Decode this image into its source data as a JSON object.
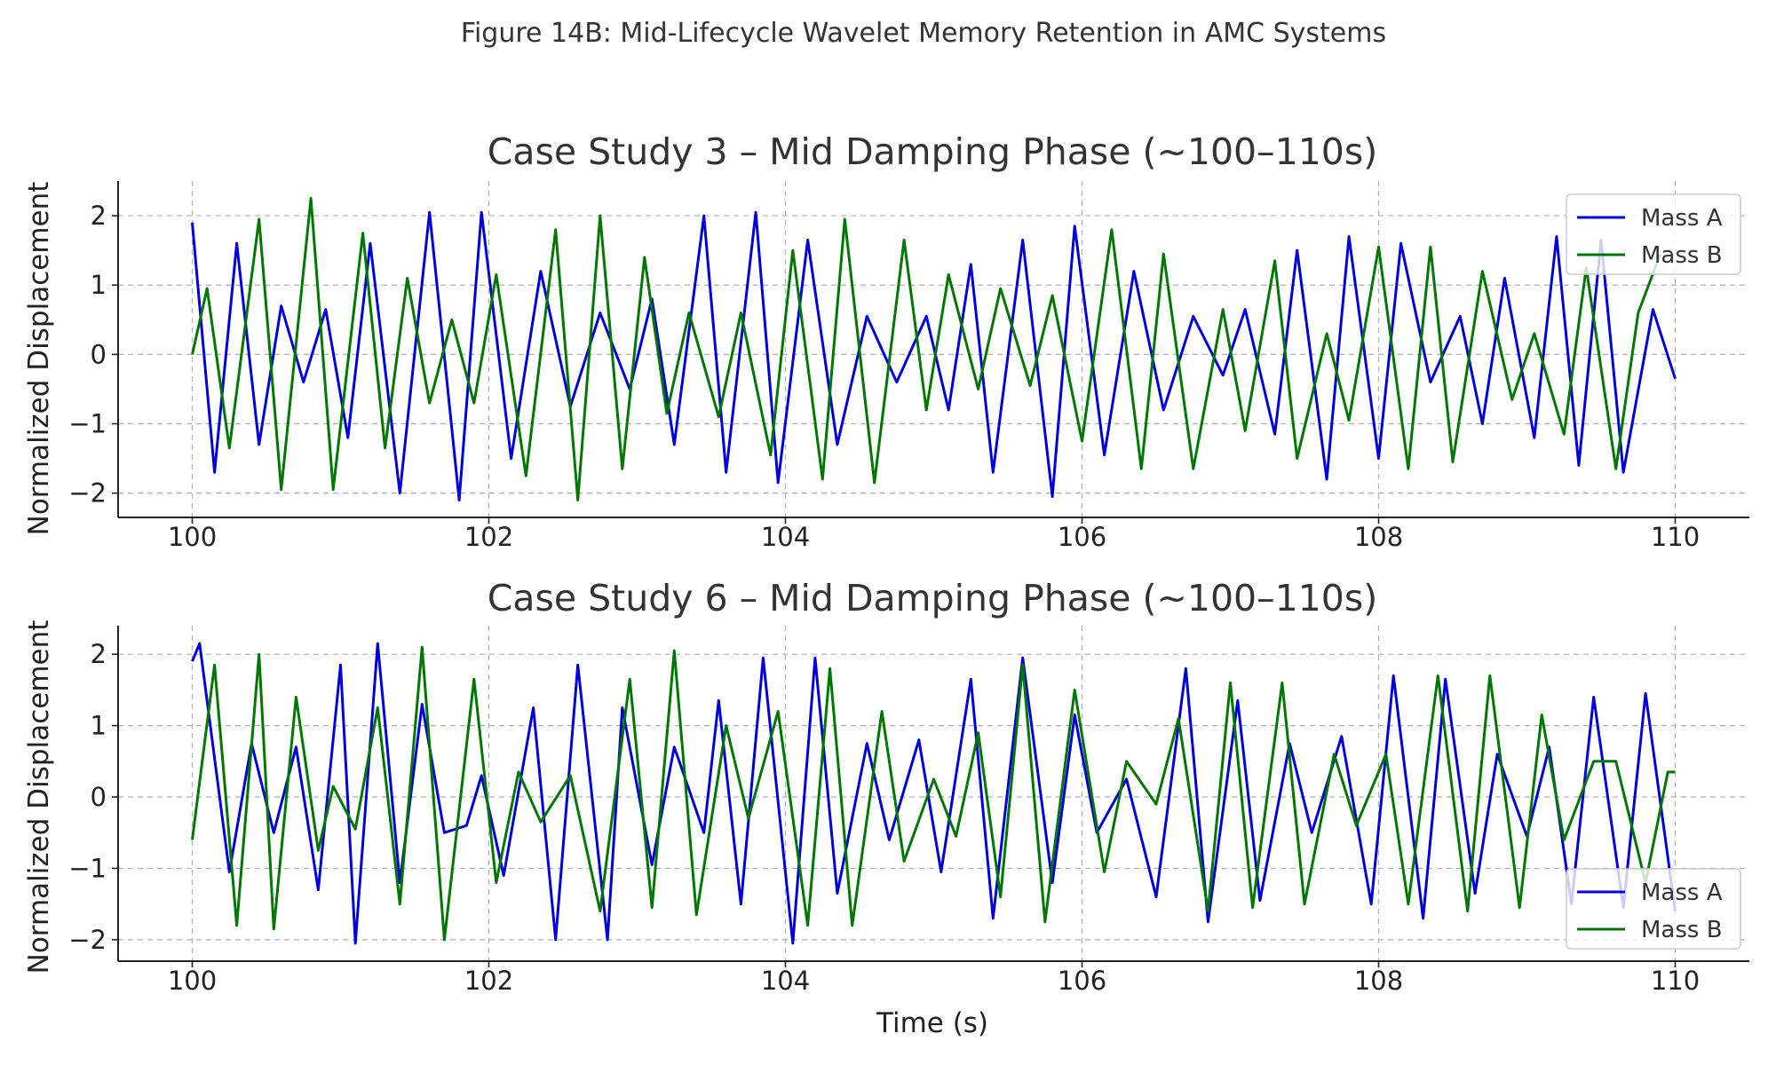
{
  "figure": {
    "suptitle": "Figure 14B: Mid-Lifecycle Wavelet Memory Retention in AMC Systems"
  },
  "chart_data": [
    {
      "type": "line",
      "title": "Case Study 3 – Mid Damping Phase (~100–110s)",
      "xlabel": "",
      "ylabel": "Normalized Displacement",
      "xlim": [
        99.5,
        110.5
      ],
      "ylim": [
        -2.35,
        2.5
      ],
      "xticks": [
        100,
        102,
        104,
        106,
        108,
        110
      ],
      "yticks": [
        -2,
        -1,
        0,
        1,
        2
      ],
      "ytick_labels": [
        "−2",
        "−1",
        "0",
        "1",
        "2"
      ],
      "grid": true,
      "legend": "top-right",
      "series": [
        {
          "name": "Mass A",
          "color": "#0000dd",
          "x": [
            100.0,
            100.15,
            100.3,
            100.45,
            100.6,
            100.75,
            100.9,
            101.05,
            101.2,
            101.4,
            101.6,
            101.8,
            101.95,
            102.15,
            102.35,
            102.55,
            102.75,
            102.95,
            103.1,
            103.25,
            103.45,
            103.6,
            103.8,
            103.95,
            104.15,
            104.35,
            104.55,
            104.75,
            104.95,
            105.1,
            105.25,
            105.4,
            105.6,
            105.8,
            105.95,
            106.15,
            106.35,
            106.55,
            106.75,
            106.95,
            107.1,
            107.3,
            107.45,
            107.65,
            107.8,
            108.0,
            108.15,
            108.35,
            108.55,
            108.7,
            108.85,
            109.05,
            109.2,
            109.35,
            109.5,
            109.65,
            109.85,
            110.0
          ],
          "y": [
            1.9,
            -1.7,
            1.6,
            -1.3,
            0.7,
            -0.4,
            0.65,
            -1.2,
            1.6,
            -2.0,
            2.05,
            -2.1,
            2.05,
            -1.5,
            1.2,
            -0.75,
            0.6,
            -0.5,
            0.8,
            -1.3,
            2.0,
            -1.7,
            2.05,
            -1.85,
            1.65,
            -1.3,
            0.55,
            -0.4,
            0.55,
            -0.8,
            1.3,
            -1.7,
            1.65,
            -2.05,
            1.85,
            -1.45,
            1.2,
            -0.8,
            0.55,
            -0.3,
            0.65,
            -1.15,
            1.5,
            -1.8,
            1.7,
            -1.5,
            1.6,
            -0.4,
            0.55,
            -1.0,
            1.1,
            -1.2,
            1.7,
            -1.6,
            1.65,
            -1.7,
            0.65,
            -0.35
          ]
        },
        {
          "name": "Mass B",
          "color": "#007700",
          "x": [
            100.0,
            100.1,
            100.25,
            100.45,
            100.6,
            100.8,
            100.95,
            101.15,
            101.3,
            101.45,
            101.6,
            101.75,
            101.9,
            102.05,
            102.25,
            102.45,
            102.6,
            102.75,
            102.9,
            103.05,
            103.2,
            103.35,
            103.55,
            103.7,
            103.9,
            104.05,
            104.25,
            104.4,
            104.6,
            104.8,
            104.95,
            105.1,
            105.3,
            105.45,
            105.65,
            105.8,
            106.0,
            106.2,
            106.4,
            106.55,
            106.75,
            106.95,
            107.1,
            107.3,
            107.45,
            107.65,
            107.8,
            108.0,
            108.2,
            108.35,
            108.5,
            108.7,
            108.9,
            109.05,
            109.25,
            109.4,
            109.6,
            109.75,
            109.9
          ],
          "y": [
            0.0,
            0.95,
            -1.35,
            1.95,
            -1.95,
            2.25,
            -1.95,
            1.75,
            -1.35,
            1.1,
            -0.7,
            0.5,
            -0.7,
            1.15,
            -1.75,
            1.8,
            -2.1,
            2.0,
            -1.65,
            1.4,
            -0.85,
            0.6,
            -0.9,
            0.6,
            -1.45,
            1.5,
            -1.8,
            1.95,
            -1.85,
            1.65,
            -0.8,
            1.15,
            -0.5,
            0.95,
            -0.45,
            0.85,
            -1.25,
            1.8,
            -1.65,
            1.45,
            -1.65,
            0.65,
            -1.1,
            1.35,
            -1.5,
            0.3,
            -0.95,
            1.55,
            -1.65,
            1.55,
            -1.55,
            1.2,
            -0.65,
            0.3,
            -1.15,
            1.25,
            -1.65,
            0.6,
            1.45
          ]
        }
      ]
    },
    {
      "type": "line",
      "title": "Case Study 6 – Mid Damping Phase (~100–110s)",
      "xlabel": "Time (s)",
      "ylabel": "Normalized Displacement",
      "xlim": [
        99.5,
        110.5
      ],
      "ylim": [
        -2.3,
        2.4
      ],
      "xticks": [
        100,
        102,
        104,
        106,
        108,
        110
      ],
      "yticks": [
        -2,
        -1,
        0,
        1,
        2
      ],
      "ytick_labels": [
        "−2",
        "−1",
        "0",
        "1",
        "2"
      ],
      "grid": true,
      "legend": "bottom-right",
      "series": [
        {
          "name": "Mass A",
          "color": "#0000dd",
          "x": [
            100.0,
            100.05,
            100.25,
            100.4,
            100.55,
            100.7,
            100.85,
            101.0,
            101.1,
            101.25,
            101.4,
            101.55,
            101.7,
            101.85,
            101.95,
            102.1,
            102.3,
            102.45,
            102.6,
            102.8,
            102.9,
            103.1,
            103.25,
            103.45,
            103.55,
            103.7,
            103.85,
            104.05,
            104.2,
            104.35,
            104.55,
            104.7,
            104.9,
            105.05,
            105.25,
            105.4,
            105.6,
            105.8,
            105.95,
            106.1,
            106.3,
            106.5,
            106.7,
            106.85,
            107.05,
            107.2,
            107.4,
            107.55,
            107.75,
            107.95,
            108.1,
            108.3,
            108.45,
            108.65,
            108.8,
            109.0,
            109.15,
            109.3,
            109.45,
            109.65,
            109.8,
            110.0
          ],
          "y": [
            1.9,
            2.15,
            -1.05,
            0.75,
            -0.5,
            0.7,
            -1.3,
            1.85,
            -2.05,
            2.15,
            -1.2,
            1.3,
            -0.5,
            -0.4,
            0.3,
            -1.1,
            1.25,
            -2.0,
            1.85,
            -2.0,
            1.25,
            -0.95,
            0.7,
            -0.5,
            1.35,
            -1.5,
            1.95,
            -2.05,
            1.95,
            -1.35,
            0.75,
            -0.6,
            0.8,
            -1.05,
            1.65,
            -1.7,
            1.95,
            -1.2,
            1.15,
            -0.5,
            0.25,
            -1.4,
            1.8,
            -1.75,
            1.35,
            -1.45,
            0.75,
            -0.5,
            0.85,
            -1.5,
            1.7,
            -1.7,
            1.65,
            -1.35,
            0.6,
            -0.55,
            0.7,
            -1.5,
            1.4,
            -1.55,
            1.45,
            -1.6
          ]
        },
        {
          "name": "Mass B",
          "color": "#007700",
          "x": [
            100.0,
            100.15,
            100.3,
            100.45,
            100.55,
            100.7,
            100.85,
            100.95,
            101.1,
            101.25,
            101.4,
            101.55,
            101.7,
            101.9,
            102.05,
            102.2,
            102.35,
            102.55,
            102.75,
            102.95,
            103.1,
            103.25,
            103.4,
            103.6,
            103.75,
            103.95,
            104.15,
            104.3,
            104.45,
            104.65,
            104.8,
            105.0,
            105.15,
            105.3,
            105.45,
            105.6,
            105.75,
            105.95,
            106.15,
            106.3,
            106.5,
            106.65,
            106.85,
            107.0,
            107.15,
            107.35,
            107.5,
            107.7,
            107.85,
            108.05,
            108.2,
            108.4,
            108.6,
            108.75,
            108.95,
            109.1,
            109.25,
            109.45,
            109.6,
            109.8,
            109.95,
            110.0
          ],
          "y": [
            -0.6,
            1.85,
            -1.8,
            2.0,
            -1.85,
            1.4,
            -0.75,
            0.15,
            -0.45,
            1.25,
            -1.5,
            2.1,
            -2.0,
            1.65,
            -1.2,
            0.35,
            -0.35,
            0.3,
            -1.6,
            1.65,
            -1.55,
            2.05,
            -1.65,
            1.0,
            -0.3,
            1.2,
            -1.8,
            1.8,
            -1.8,
            1.2,
            -0.9,
            0.25,
            -0.55,
            0.9,
            -1.4,
            1.85,
            -1.75,
            1.5,
            -1.05,
            0.5,
            -0.1,
            1.1,
            -1.6,
            1.6,
            -1.55,
            1.6,
            -1.5,
            0.6,
            -0.4,
            0.6,
            -1.5,
            1.7,
            -1.6,
            1.7,
            -1.55,
            1.15,
            -0.6,
            0.5,
            0.5,
            -1.2,
            0.35,
            0.35
          ]
        }
      ]
    }
  ]
}
